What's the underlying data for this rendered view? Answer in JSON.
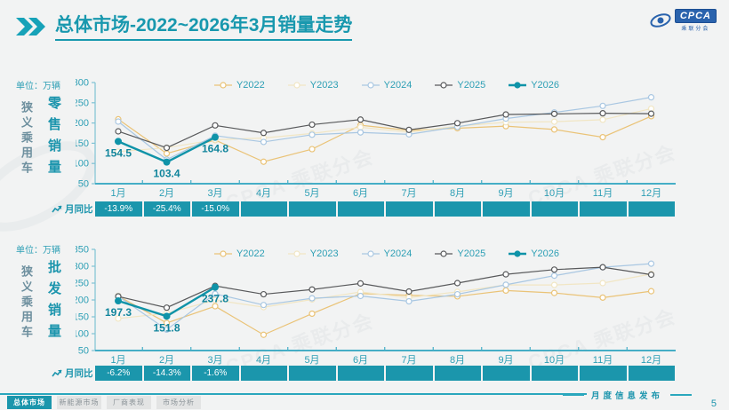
{
  "header": {
    "title_bold": "总体市场",
    "title_rest": "-2022~2026年3月销量走势"
  },
  "logo": {
    "name": "CPCA",
    "subtitle": "乘联分会"
  },
  "watermark": "CPCA 乘联分会",
  "chart_data": [
    {
      "id": "retail",
      "type": "line",
      "group_label": "狭义乘用车",
      "metric_label": "零售销量",
      "unit_label": "单位：万辆",
      "categories": [
        "1月",
        "2月",
        "3月",
        "4月",
        "5月",
        "6月",
        "7月",
        "8月",
        "9月",
        "10月",
        "11月",
        "12月"
      ],
      "ylim": [
        50,
        300
      ],
      "yticks": [
        300,
        250,
        200,
        150,
        100,
        50
      ],
      "grid": false,
      "legend_position": "top",
      "series": [
        {
          "name": "Y2022",
          "color": "#eac377",
          "marker": "open",
          "values": [
            209.2,
            124.6,
            157.9,
            104.3,
            135.4,
            194.4,
            181.8,
            187.1,
            192.2,
            184.0,
            164.9,
            216.9
          ]
        },
        {
          "name": "Y2023",
          "color": "#f1e6c4",
          "marker": "open",
          "values": [
            129.3,
            139.0,
            158.7,
            163.0,
            174.2,
            189.4,
            177.5,
            192.0,
            201.8,
            203.3,
            208.1,
            235.4
          ]
        },
        {
          "name": "Y2024",
          "color": "#a9c7e2",
          "marker": "open",
          "values": [
            203.5,
            109.5,
            168.7,
            153.2,
            171.0,
            176.7,
            172.0,
            190.5,
            210.9,
            226.1,
            242.3,
            263.5
          ]
        },
        {
          "name": "Y2025",
          "color": "#58595b",
          "marker": "open",
          "values": [
            179.4,
            138.6,
            194.0,
            175.5,
            196.0,
            208.4,
            183.0,
            199.5,
            221.0,
            222.5,
            224.0,
            223.0
          ]
        },
        {
          "name": "Y2026",
          "color": "#0f93a8",
          "marker": "filled",
          "bold": true,
          "values": [
            154.5,
            103.4,
            164.8
          ],
          "data_labels": [
            "154.5",
            "103.4",
            "164.8"
          ]
        }
      ],
      "yoy": {
        "label": "月同比",
        "values": [
          "-13.9%",
          "-25.4%",
          "-15.0%",
          "",
          "",
          "",
          "",
          "",
          "",
          "",
          "",
          ""
        ]
      }
    },
    {
      "id": "wholesale",
      "type": "line",
      "group_label": "狭义乘用车",
      "metric_label": "批发销量",
      "unit_label": "单位：万辆",
      "categories": [
        "1月",
        "2月",
        "3月",
        "4月",
        "5月",
        "6月",
        "7月",
        "8月",
        "9月",
        "10月",
        "11月",
        "12月"
      ],
      "ylim": [
        50,
        350
      ],
      "yticks": [
        350,
        300,
        250,
        200,
        150,
        100,
        50
      ],
      "grid": false,
      "legend_position": "top",
      "series": [
        {
          "name": "Y2022",
          "color": "#eac377",
          "marker": "open",
          "values": [
            211.9,
            131.7,
            181.4,
            96.7,
            159.3,
            218.9,
            213.9,
            210.7,
            227.9,
            220.7,
            207.0,
            226.0
          ]
        },
        {
          "name": "Y2023",
          "color": "#f1e6c4",
          "marker": "open",
          "values": [
            144.9,
            160.6,
            199.7,
            178.7,
            201.3,
            223.7,
            207.0,
            224.0,
            244.7,
            244.5,
            250.0,
            277.0
          ]
        },
        {
          "name": "Y2024",
          "color": "#a9c7e2",
          "marker": "open",
          "values": [
            211.2,
            112.0,
            218.0,
            185.0,
            205.0,
            211.8,
            196.0,
            217.0,
            245.1,
            272.0,
            297.0,
            307.6
          ]
        },
        {
          "name": "Y2025",
          "color": "#58595b",
          "marker": "open",
          "values": [
            210.3,
            177.1,
            241.7,
            217.0,
            231.0,
            249.0,
            225.0,
            250.0,
            276.0,
            290.0,
            297.0,
            275.0
          ]
        },
        {
          "name": "Y2026",
          "color": "#0f93a8",
          "marker": "filled",
          "bold": true,
          "values": [
            197.3,
            151.8,
            237.8
          ],
          "data_labels": [
            "197.3",
            "151.8",
            "237.8"
          ]
        }
      ],
      "yoy": {
        "label": "月同比",
        "values": [
          "-6.2%",
          "-14.3%",
          "-1.6%",
          "",
          "",
          "",
          "",
          "",
          "",
          "",
          "",
          ""
        ]
      }
    }
  ],
  "footer": {
    "tabs": [
      {
        "label": "总体市场",
        "active": true
      },
      {
        "label": "新能源市场",
        "active": false
      },
      {
        "label": "厂商表现",
        "active": false
      },
      {
        "label": "市场分析",
        "active": false
      }
    ],
    "publication": "月度信息发布",
    "page_number": "5"
  }
}
